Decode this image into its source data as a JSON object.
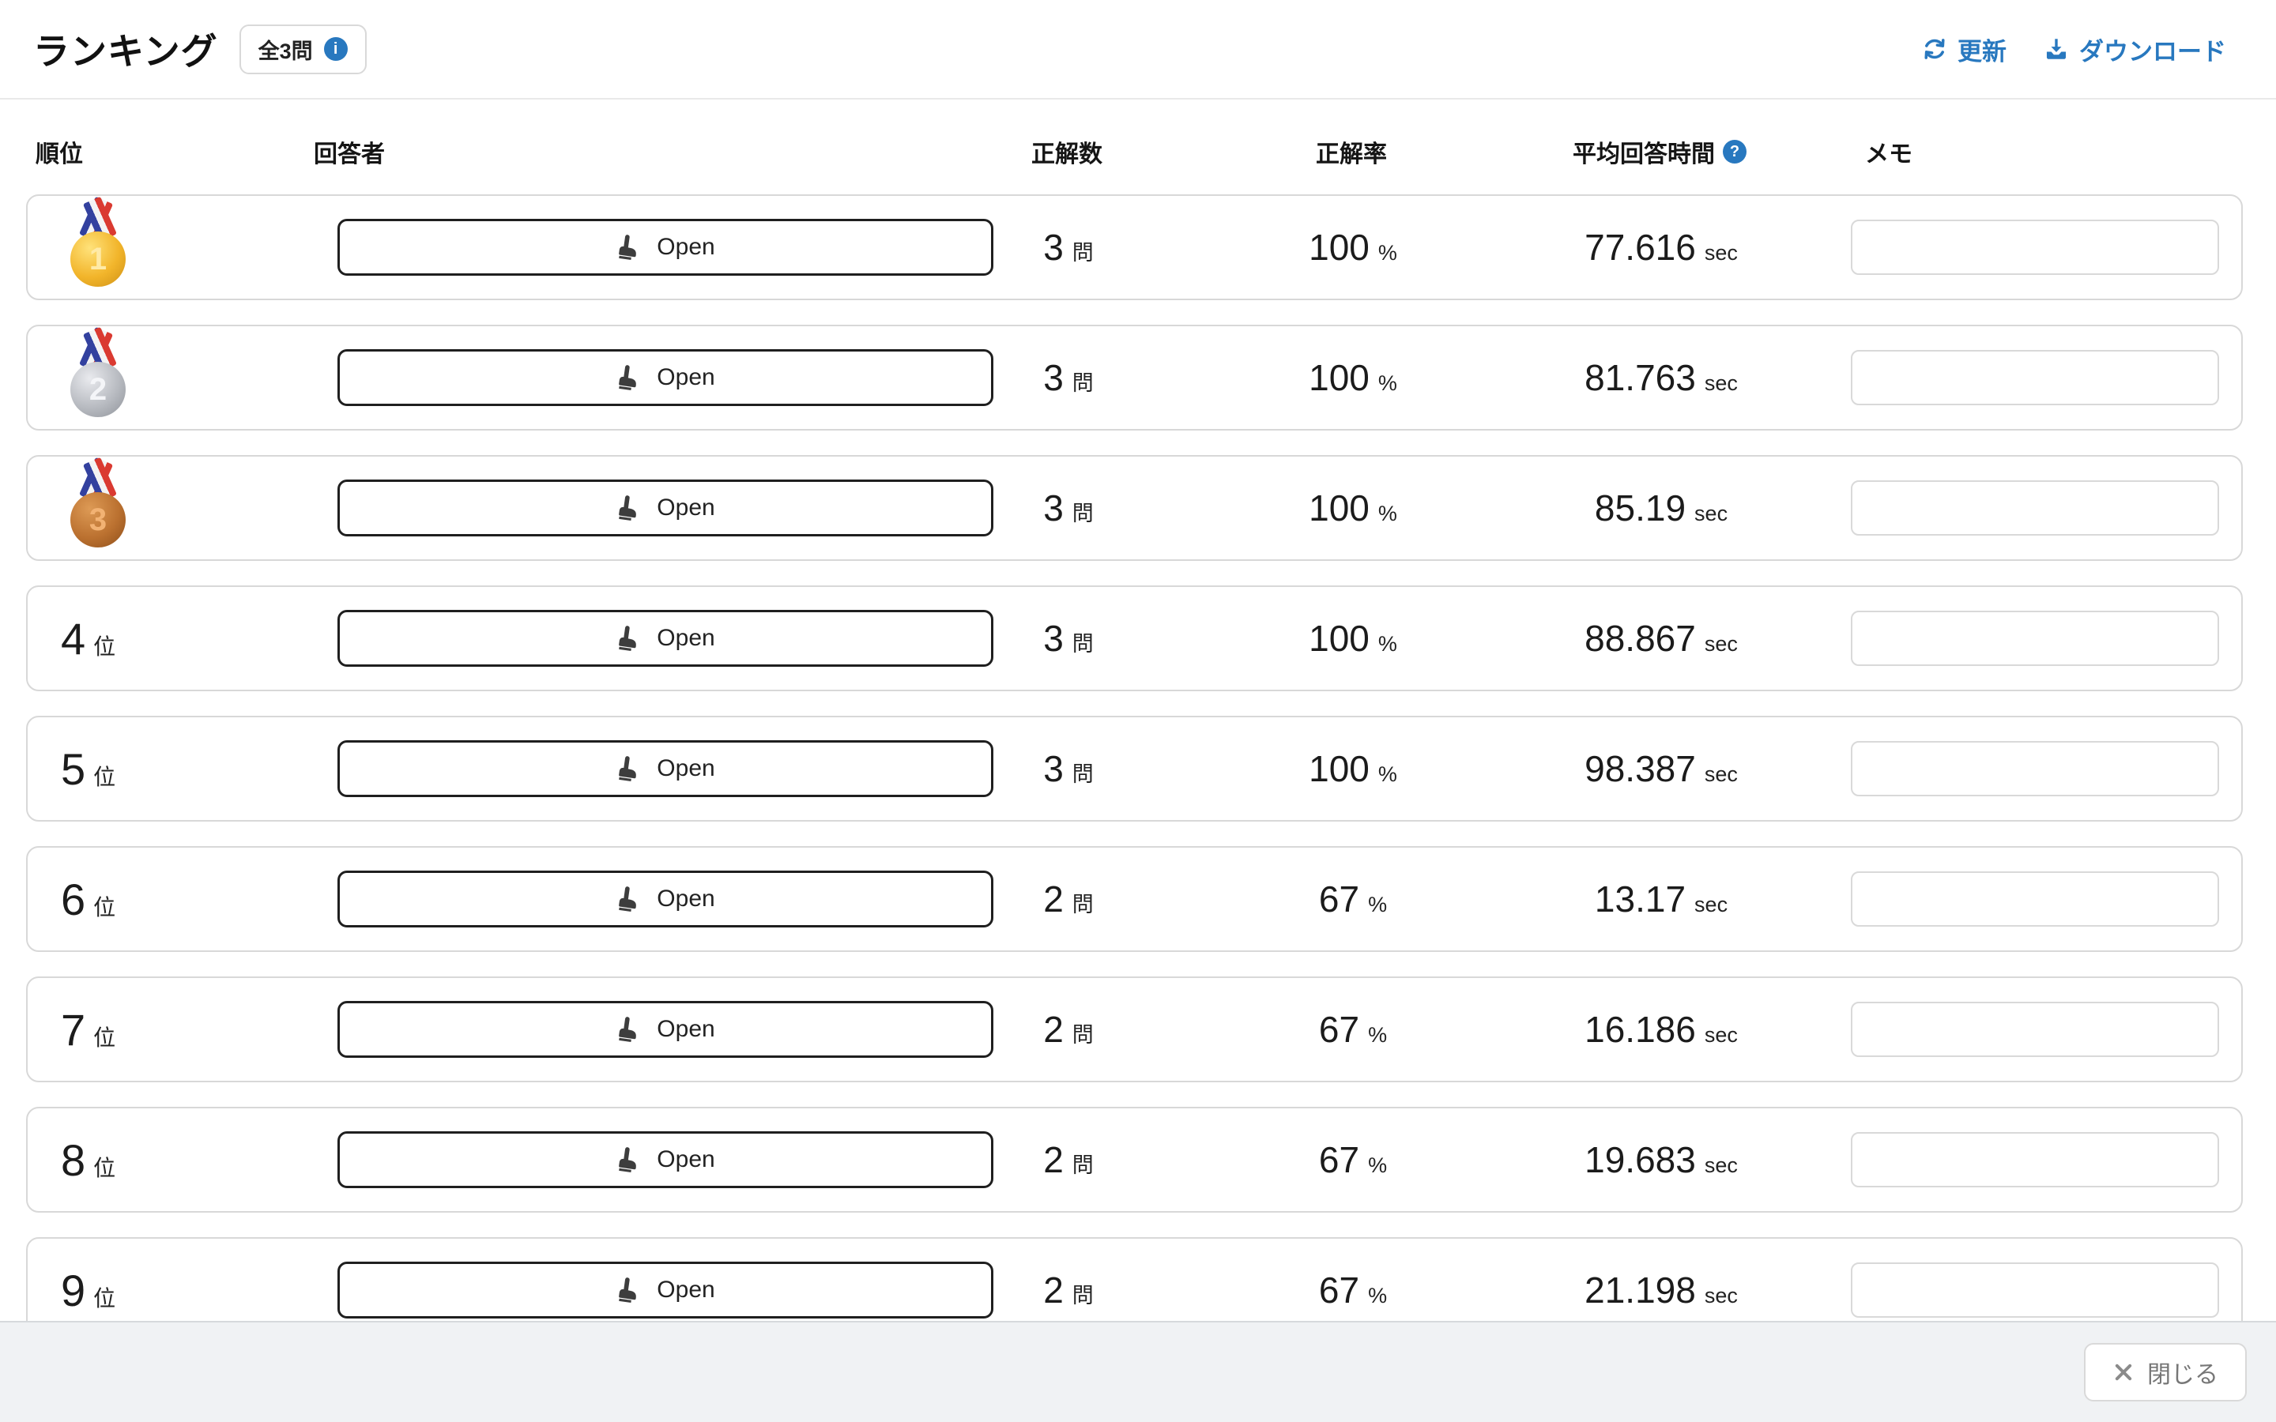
{
  "header": {
    "title": "ランキング",
    "badge": {
      "label": "全3問",
      "info_icon": "info-circle"
    },
    "actions": {
      "refresh": "更新",
      "download": "ダウンロード"
    }
  },
  "table": {
    "columns": {
      "rank": "順位",
      "respondent": "回答者",
      "correct_count": "正解数",
      "correct_rate": "正解率",
      "avg_time": "平均回答時間",
      "memo": "メモ"
    },
    "avg_time_help_icon": "question-circle"
  },
  "open_button_label": "Open",
  "rank_suffix": "位",
  "units": {
    "questions": "問",
    "percent": "%",
    "seconds": "sec"
  },
  "rows": [
    {
      "rank": 1,
      "medal": "gold",
      "correct_count": "3",
      "correct_rate": "100",
      "avg_time": "77.616",
      "memo": ""
    },
    {
      "rank": 2,
      "medal": "silver",
      "correct_count": "3",
      "correct_rate": "100",
      "avg_time": "81.763",
      "memo": ""
    },
    {
      "rank": 3,
      "medal": "bronze",
      "correct_count": "3",
      "correct_rate": "100",
      "avg_time": "85.19",
      "memo": ""
    },
    {
      "rank": 4,
      "medal": null,
      "correct_count": "3",
      "correct_rate": "100",
      "avg_time": "88.867",
      "memo": ""
    },
    {
      "rank": 5,
      "medal": null,
      "correct_count": "3",
      "correct_rate": "100",
      "avg_time": "98.387",
      "memo": ""
    },
    {
      "rank": 6,
      "medal": null,
      "correct_count": "2",
      "correct_rate": "67",
      "avg_time": "13.17",
      "memo": ""
    },
    {
      "rank": 7,
      "medal": null,
      "correct_count": "2",
      "correct_rate": "67",
      "avg_time": "16.186",
      "memo": ""
    },
    {
      "rank": 8,
      "medal": null,
      "correct_count": "2",
      "correct_rate": "67",
      "avg_time": "19.683",
      "memo": ""
    },
    {
      "rank": 9,
      "medal": null,
      "correct_count": "2",
      "correct_rate": "67",
      "avg_time": "21.198",
      "memo": ""
    }
  ],
  "footer": {
    "close_label": "閉じる"
  },
  "colors": {
    "accent_blue": "#2878bf",
    "border_gray": "#d8d8d8",
    "footer_bg": "#f0f2f4",
    "text_dark": "#1c1c1c"
  }
}
